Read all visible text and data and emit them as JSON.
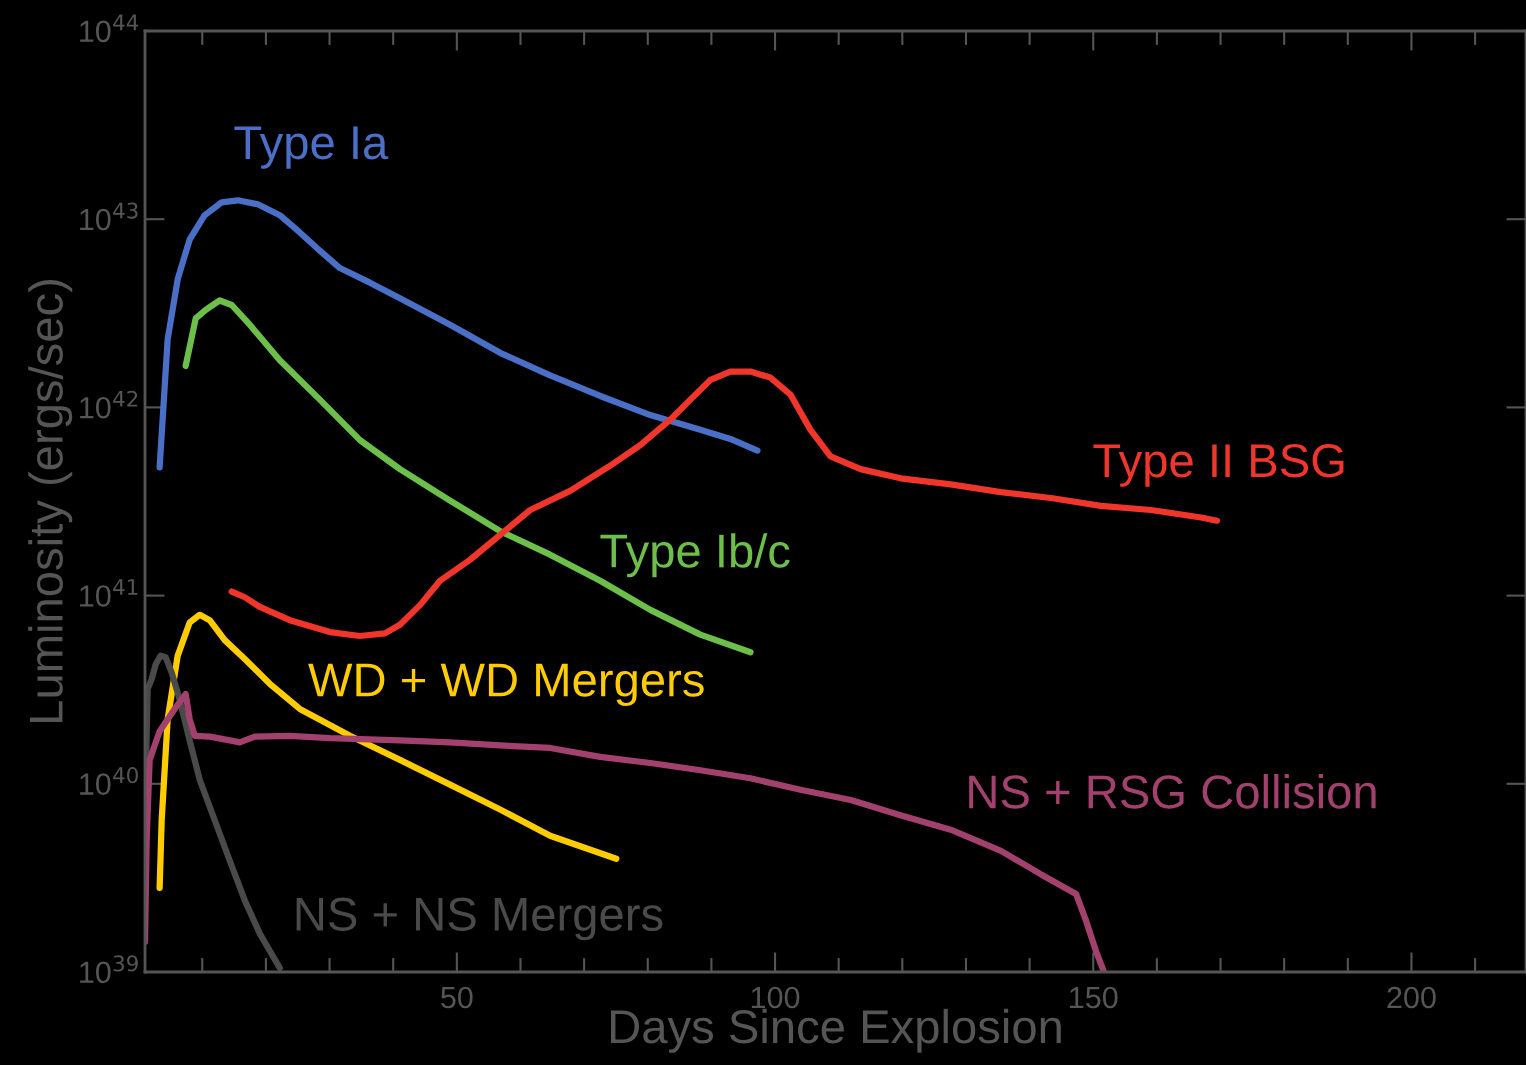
{
  "chart_data": {
    "type": "line",
    "xlabel": "Days Since Explosion",
    "ylabel": "Luminosity (ergs/sec)",
    "log": "y",
    "xlim": [
      1,
      218
    ],
    "xticks": [
      {
        "value": 10,
        "label": null
      },
      {
        "value": 20,
        "label": null
      },
      {
        "value": 30,
        "label": null
      },
      {
        "value": 40,
        "label": null
      },
      50,
      {
        "value": 60,
        "label": null
      },
      {
        "value": 70,
        "label": null
      },
      {
        "value": 80,
        "label": null
      },
      {
        "value": 90,
        "label": null
      },
      100,
      {
        "value": 110,
        "label": null
      },
      {
        "value": 120,
        "label": null
      },
      {
        "value": 130,
        "label": null
      },
      {
        "value": 140,
        "label": null
      },
      150,
      {
        "value": 160,
        "label": null
      },
      {
        "value": 170,
        "label": null
      },
      {
        "value": 180,
        "label": null
      },
      {
        "value": 190,
        "label": null
      },
      200,
      {
        "value": 210,
        "label": null
      }
    ],
    "ylim": [
      1e+39,
      1e+44
    ],
    "yticks": [
      {
        "value": 1e+39,
        "label": "10$^{39}$"
      },
      {
        "value": 1e+40,
        "label": "10$^{40}$"
      },
      {
        "value": 1e+41,
        "label": "10$^{41}$"
      },
      {
        "value": 1e+42,
        "label": "10$^{42}$"
      },
      {
        "value": 1e+43,
        "label": "10$^{43}$"
      },
      {
        "value": 1e+44,
        "label": "10$^{44}$"
      }
    ],
    "grid": false,
    "legend": false,
    "marker": "none",
    "line_style": "solid",
    "series": [
      {
        "name": "Type Ia",
        "color": "#4a6fc6",
        "x": [
          3.3,
          4.56,
          6.14,
          8.02,
          10.38,
          13.06,
          15.58,
          18.72,
          22.18,
          25.33,
          28.48,
          31.62,
          36.34,
          41.06,
          48.93,
          56.8,
          64.66,
          72.53,
          80.4,
          88.26,
          92.98,
          97.23
        ],
        "values": [
          4.8e+41,
          2.3e+42,
          4.8e+42,
          7.8e+42,
          1.05e+43,
          1.23e+43,
          1.26e+43,
          1.2e+43,
          1.05e+43,
          8.5e+42,
          6.8e+42,
          5.5e+42,
          4.6e+42,
          3.8e+42,
          2.75e+42,
          1.95e+42,
          1.48e+42,
          1.15e+42,
          9.1e+41,
          7.6e+41,
          6.8e+41,
          5.9e+41
        ]
      },
      {
        "name": "Type Ib/c",
        "color": "#6cc04a",
        "x": [
          7.39,
          8.97,
          10.54,
          12.74,
          14.63,
          17.46,
          22.18,
          28.48,
          34.77,
          41.06,
          48.93,
          56.8,
          64.66,
          72.53,
          80.4,
          88.26,
          96.14
        ],
        "values": [
          1.66e+42,
          2.97e+42,
          3.3e+42,
          3.7e+42,
          3.5e+42,
          2.75e+42,
          1.78e+42,
          1.1e+42,
          6.7e+41,
          4.7e+41,
          3.2e+41,
          2.2e+41,
          1.65e+41,
          1.2e+41,
          8.4e+40,
          6.2e+40,
          5e+40
        ]
      },
      {
        "name": "Type II BSG",
        "color": "#f0362a",
        "x": [
          14.63,
          16.68,
          19.04,
          23.76,
          30.05,
          34.77,
          38.7,
          41.06,
          44.21,
          47.36,
          52.08,
          56.8,
          61.52,
          67.81,
          74.1,
          78.82,
          83.54,
          86.69,
          89.84,
          92.98,
          96.13,
          99.28,
          102.42,
          105.57,
          108.72,
          113.44,
          119.73,
          127.6,
          135.46,
          143.33,
          151.2,
          159.06,
          166.93,
          169.45
        ],
        "values": [
          1.05e+41,
          9.8e+40,
          8.7e+40,
          7.4e+40,
          6.4e+40,
          6.1e+40,
          6.3e+40,
          7e+40,
          8.9e+40,
          1.2e+41,
          1.55e+41,
          2.1e+41,
          2.85e+41,
          3.6e+41,
          4.9e+41,
          6.3e+41,
          8.6e+41,
          1.1e+42,
          1.4e+42,
          1.55e+42,
          1.55e+42,
          1.44e+42,
          1.17e+42,
          7.6e+41,
          5.5e+41,
          4.7e+41,
          4.2e+41,
          3.9e+41,
          3.55e+41,
          3.3e+41,
          3e+41,
          2.85e+41,
          2.6e+41,
          2.5e+41
        ]
      },
      {
        "name": "WD + WD Mergers",
        "color": "#ffcc00",
        "x": [
          3.3,
          3.62,
          4.56,
          6.14,
          8.02,
          9.6,
          11.17,
          13.53,
          16.68,
          20.61,
          25.33,
          33.2,
          41.06,
          48.93,
          56.8,
          64.66,
          75.05
        ],
        "values": [
          2.8e+39,
          6.4e+39,
          2.2e+40,
          4.8e+40,
          7.2e+40,
          7.9e+40,
          7.4e+40,
          5.8e+40,
          4.6e+40,
          3.4e+40,
          2.5e+40,
          1.8e+40,
          1.34e+40,
          9.9e+39,
          7.3e+39,
          5.3e+39,
          4e+39
        ]
      },
      {
        "name": "NS + NS Mergers",
        "color": "#4a4a4a",
        "x": [
          1.1,
          1.42,
          2.05,
          2.67,
          3.46,
          4.25,
          5.19,
          6.45,
          8.02,
          9.6,
          11.96,
          14.32,
          16.68,
          19.04,
          22.18
        ],
        "values": [
          9.9e+39,
          3.2e+40,
          3.6e+40,
          4.3e+40,
          4.8e+40,
          4.7e+40,
          3.9e+40,
          2.8e+40,
          1.7e+40,
          1.05e+40,
          6.4e+39,
          3.9e+39,
          2.4e+39,
          1.6e+39,
          1.05e+39
        ]
      },
      {
        "name": "NS + RSG Collision",
        "color": "#a3416e",
        "x": [
          1.0,
          1.26,
          1.73,
          3.3,
          5.66,
          7.39,
          8.02,
          8.81,
          11.17,
          14.32,
          15.89,
          18.25,
          23.76,
          30.05,
          41.06,
          48.93,
          56.8,
          64.66,
          72.53,
          80.4,
          88.26,
          96.13,
          104.0,
          111.9,
          119.7,
          127.6,
          135.5,
          141.8,
          147.3,
          148.8,
          150.4,
          151.7
        ],
        "values": [
          1.45e+39,
          5e+39,
          1.34e+40,
          1.9e+40,
          2.5e+40,
          3e+40,
          2.2e+40,
          1.8e+40,
          1.78e+40,
          1.7e+40,
          1.66e+40,
          1.78e+40,
          1.8e+40,
          1.75e+40,
          1.7e+40,
          1.66e+40,
          1.6e+40,
          1.55e+40,
          1.39e+40,
          1.29e+40,
          1.18e+40,
          1.07e+40,
          9.3e+39,
          8.2e+39,
          6.8e+39,
          5.7e+39,
          4.4e+39,
          3.3e+39,
          2.6e+39,
          1.9e+39,
          1.3e+39,
          1e+39
        ]
      }
    ]
  }
}
